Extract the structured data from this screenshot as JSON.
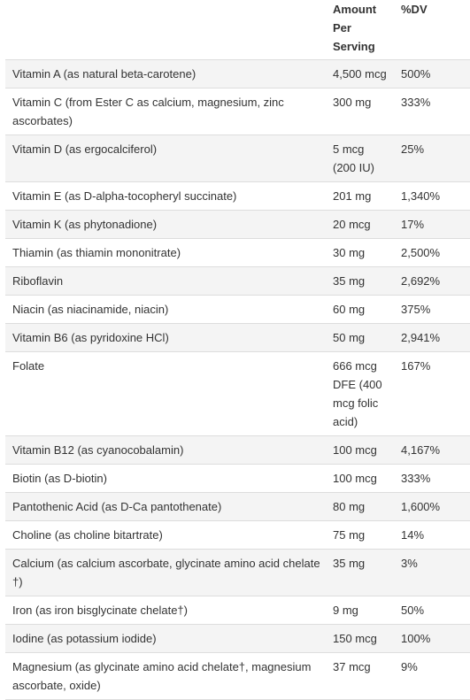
{
  "header": {
    "nutrient": "",
    "amount": "Amount Per Serving",
    "dv": "%DV"
  },
  "rows": [
    {
      "name": "Vitamin A (as natural beta-carotene)",
      "amount": "4,500 mcg",
      "dv": "500%"
    },
    {
      "name": "Vitamin C (from Ester C as calcium, magnesium, zinc ascorbates)",
      "amount": "300 mg",
      "dv": "333%"
    },
    {
      "name": "Vitamin D (as ergocalciferol)",
      "amount": "5 mcg (200 IU)",
      "dv": "25%"
    },
    {
      "name": "Vitamin E (as D-alpha-tocopheryl succinate)",
      "amount": "201 mg",
      "dv": "1,340%"
    },
    {
      "name": "Vitamin K (as phytonadione)",
      "amount": "20 mcg",
      "dv": "17%"
    },
    {
      "name": "Thiamin (as thiamin mononitrate)",
      "amount": "30 mg",
      "dv": "2,500%"
    },
    {
      "name": "Riboflavin",
      "amount": "35 mg",
      "dv": "2,692%"
    },
    {
      "name": "Niacin (as niacinamide, niacin)",
      "amount": "60 mg",
      "dv": "375%"
    },
    {
      "name": "Vitamin B6 (as pyridoxine HCl)",
      "amount": "50 mg",
      "dv": "2,941%"
    },
    {
      "name": "Folate",
      "amount": "666 mcg DFE (400 mcg folic acid)",
      "dv": "167%"
    },
    {
      "name": "Vitamin B12 (as cyanocobalamin)",
      "amount": "100 mcg",
      "dv": "4,167%"
    },
    {
      "name": "Biotin (as D-biotin)",
      "amount": "100 mcg",
      "dv": "333%"
    },
    {
      "name": "Pantothenic Acid (as D-Ca pantothenate)",
      "amount": "80 mg",
      "dv": "1,600%"
    },
    {
      "name": "Choline (as choline bitartrate)",
      "amount": "75 mg",
      "dv": "14%"
    },
    {
      "name": "Calcium (as calcium ascorbate, glycinate amino acid chelate †)",
      "amount": "35 mg",
      "dv": "3%"
    },
    {
      "name": "Iron (as iron bisglycinate chelate†)",
      "amount": "9 mg",
      "dv": "50%"
    },
    {
      "name": "Iodine (as potassium iodide)",
      "amount": "150 mcg",
      "dv": "100%"
    },
    {
      "name": "Magnesium (as glycinate amino acid chelate†, magnesium ascorbate, oxide)",
      "amount": "37 mcg",
      "dv": "9%"
    }
  ]
}
